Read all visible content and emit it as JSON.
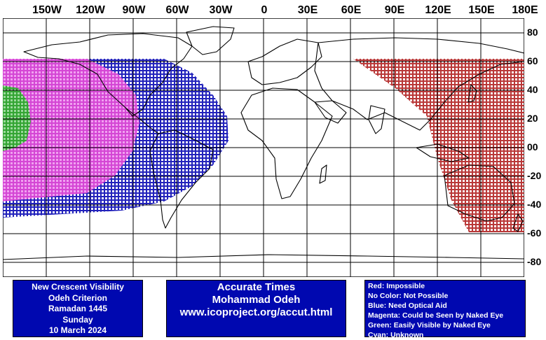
{
  "axes": {
    "longitude_labels": [
      "150W",
      "120W",
      "90W",
      "60W",
      "30W",
      "0",
      "30E",
      "60E",
      "90E",
      "120E",
      "150E",
      "180E"
    ],
    "latitude_labels": [
      "80",
      "60",
      "40",
      "20",
      "00",
      "-20",
      "-40",
      "-60",
      "-80"
    ]
  },
  "visibility_zones": [
    {
      "name": "Red",
      "color": "#b22222",
      "meaning": "Impossible"
    },
    {
      "name": "Blue",
      "color": "#0a0ab4",
      "meaning": "Need Optical Aid"
    },
    {
      "name": "Magenta",
      "color": "#d23cd2",
      "meaning": "Could be Seen by Naked Eye"
    },
    {
      "name": "Green",
      "color": "#28a028",
      "meaning": "Easily Visible by Naked Eye"
    }
  ],
  "info_panel": {
    "lines": [
      "New Crescent Visibility",
      "Odeh Criterion",
      "Ramadan 1445",
      "Sunday",
      "10 March 2024"
    ]
  },
  "credit_panel": {
    "lines": [
      "Accurate Times",
      "Mohammad Odeh",
      "www.icoproject.org/accut.html"
    ]
  },
  "legend_panel": {
    "lines": [
      "Red: Impossible",
      "No Color: Not Possible",
      "Blue: Need Optical Aid",
      "Magenta: Could be Seen by Naked Eye",
      "Green: Easily Visible by Naked Eye",
      "Cyan: Unknown"
    ]
  },
  "colors": {
    "panel_bg": "#0008b0",
    "panel_text": "#ffffff",
    "grid": "#000000"
  }
}
